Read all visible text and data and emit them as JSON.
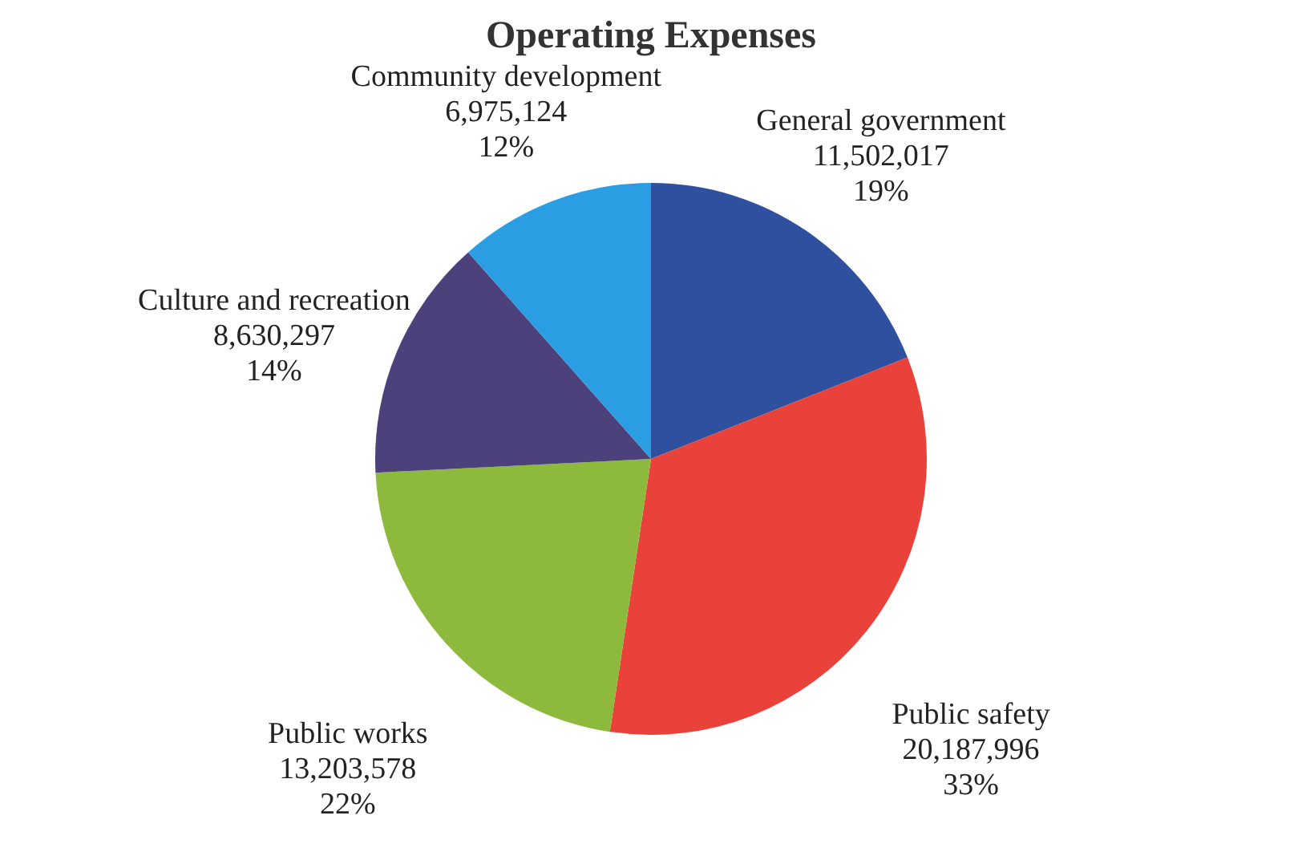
{
  "chart_data": {
    "type": "pie",
    "title": "Operating Expenses",
    "categories": [
      "General government",
      "Public safety",
      "Public works",
      "Culture and recreation",
      "Community development"
    ],
    "values": [
      11502017,
      20187996,
      13203578,
      8630297,
      6975124
    ],
    "value_labels": [
      "11,502,017\n19%",
      "20,187,996\n33%",
      "13,203,578\n22%",
      "8,630,297\n14%",
      "6,975,124\n12%"
    ],
    "colors": [
      "#2f509f",
      "#e8423b",
      "#8dba3c",
      "#4d417b",
      "#2b9de2"
    ]
  }
}
